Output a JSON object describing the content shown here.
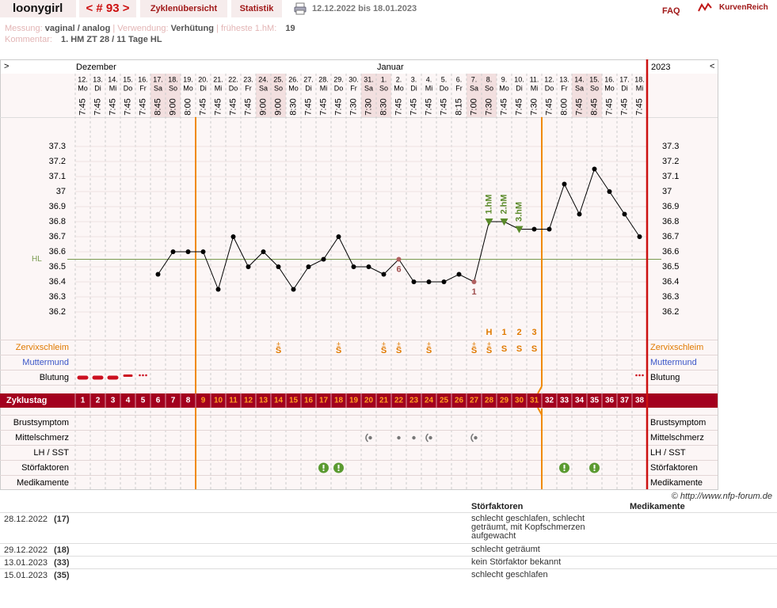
{
  "header": {
    "user": "loonygirl",
    "cycle": "< # 93 >",
    "tabs": [
      "Zyklenübersicht",
      "Statistik"
    ],
    "date_range": "12.12.2022 bis 18.01.2023",
    "faq": "FAQ",
    "logo": "KurvenReich"
  },
  "info": {
    "measurement_label": "Messung:",
    "measurement": "vaginal / analog",
    "separator": "|",
    "usage_label": "Verwendung:",
    "usage": "Verhütung",
    "earliest_label": "früheste 1.hM:",
    "earliest": "19",
    "comment_label": "Kommentar:",
    "comment": "1. HM ZT 28 / 11 Tage HL"
  },
  "chart_data": {
    "type": "line",
    "nav_prev": ">",
    "nav_next": "<",
    "year": "2023",
    "month_labels": [
      "Dezember",
      null,
      null,
      null,
      null,
      null,
      null,
      null,
      null,
      null,
      null,
      null,
      null,
      null,
      null,
      null,
      null,
      null,
      null,
      null,
      "Januar",
      null,
      null,
      null,
      null,
      null,
      null,
      null,
      null,
      null,
      null,
      null,
      null,
      null,
      null,
      null,
      null,
      null
    ],
    "categories": [
      "12.",
      "13.",
      "14.",
      "15.",
      "16.",
      "17.",
      "18.",
      "19.",
      "20.",
      "21.",
      "22.",
      "23.",
      "24.",
      "25.",
      "26.",
      "27.",
      "28.",
      "29.",
      "30.",
      "31.",
      "1.",
      "2.",
      "3.",
      "4.",
      "5.",
      "6.",
      "7.",
      "8.",
      "9.",
      "10.",
      "11.",
      "12.",
      "13.",
      "14.",
      "15.",
      "16.",
      "17.",
      "18."
    ],
    "weekdays": [
      "Mo",
      "Di",
      "Mi",
      "Do",
      "Fr",
      "Sa",
      "So",
      "Mo",
      "Di",
      "Mi",
      "Do",
      "Fr",
      "Sa",
      "So",
      "Mo",
      "Di",
      "Mi",
      "Do",
      "Fr",
      "Sa",
      "So",
      "Mo",
      "Di",
      "Mi",
      "Do",
      "Fr",
      "Sa",
      "So",
      "Mo",
      "Di",
      "Mi",
      "Do",
      "Fr",
      "Sa",
      "So",
      "Mo",
      "Di",
      "Mi"
    ],
    "times": [
      "7:45",
      "7:45",
      "7:45",
      "7:45",
      "7:45",
      "8:45",
      "9:00",
      "8:00",
      "7:45",
      "7:45",
      "7:45",
      "7:45",
      "9:00",
      "9:00",
      "8:30",
      "7:45",
      "7:45",
      "7:45",
      "7:30",
      "7:30",
      "8:30",
      "7:45",
      "7:45",
      "7:45",
      "7:45",
      "8:15",
      "7:00",
      "7:30",
      "7:45",
      "7:45",
      "7:30",
      "7:45",
      "8:00",
      "7:45",
      "8:45",
      "7:45",
      "7:45",
      "7:45"
    ],
    "values": [
      null,
      null,
      null,
      null,
      null,
      36.45,
      36.6,
      36.6,
      36.6,
      36.35,
      36.7,
      36.5,
      36.6,
      36.5,
      36.35,
      36.5,
      36.55,
      36.7,
      36.5,
      36.5,
      36.45,
      36.55,
      36.4,
      36.4,
      36.4,
      36.45,
      36.4,
      36.8,
      36.8,
      36.75,
      36.75,
      36.75,
      37.05,
      36.85,
      37.15,
      37.0,
      36.85,
      36.7
    ],
    "color": "#000000",
    "ylim": [
      36.1,
      37.4
    ],
    "yticks": [
      36.2,
      36.3,
      36.4,
      36.5,
      36.6,
      36.7,
      36.8,
      36.9,
      37,
      37.1,
      37.2,
      37.3
    ],
    "grid": true,
    "baseline": {
      "label": "HL",
      "value": 36.55,
      "color": "#7a9a50"
    },
    "point_notes": [
      null,
      null,
      null,
      null,
      null,
      null,
      null,
      null,
      null,
      null,
      null,
      null,
      null,
      null,
      null,
      null,
      null,
      null,
      null,
      null,
      null,
      "6",
      null,
      null,
      null,
      null,
      "1",
      null,
      null,
      null,
      null,
      null,
      null,
      null,
      null,
      null,
      null,
      null
    ],
    "hm_labels": [
      null,
      null,
      null,
      null,
      null,
      null,
      null,
      null,
      null,
      null,
      null,
      null,
      null,
      null,
      null,
      null,
      null,
      null,
      null,
      null,
      null,
      null,
      null,
      null,
      null,
      null,
      null,
      "1.hM",
      "2.hM",
      "3.hM",
      null,
      null,
      null,
      null,
      null,
      null,
      null,
      null
    ],
    "hm_color": "#5a8a2a",
    "cycle_day_label": "Zyklustag",
    "cycle_days": [
      1,
      2,
      3,
      4,
      5,
      6,
      7,
      8,
      9,
      10,
      11,
      12,
      13,
      14,
      15,
      16,
      17,
      18,
      19,
      20,
      21,
      22,
      23,
      24,
      25,
      26,
      27,
      28,
      29,
      30,
      31,
      32,
      33,
      34,
      35,
      36,
      37,
      38
    ],
    "fertile_window": [
      9,
      31
    ],
    "rows": [
      {
        "label": "Zervixschleim",
        "color": "#e07a00",
        "codes": [
          null,
          null,
          null,
          null,
          null,
          null,
          null,
          null,
          null,
          null,
          null,
          null,
          null,
          null,
          null,
          null,
          null,
          null,
          null,
          null,
          null,
          null,
          null,
          null,
          null,
          null,
          null,
          "H",
          "1",
          "2",
          "3",
          null,
          null,
          null,
          null,
          null,
          null,
          null
        ],
        "tops": [
          null,
          null,
          null,
          null,
          null,
          null,
          null,
          null,
          null,
          null,
          null,
          null,
          null,
          "±",
          null,
          null,
          null,
          "±",
          null,
          null,
          "±",
          "±",
          null,
          "±",
          null,
          null,
          "±",
          "±",
          null,
          null,
          null,
          null,
          null,
          null,
          null,
          null,
          null,
          null
        ],
        "marks": [
          null,
          null,
          null,
          null,
          null,
          null,
          null,
          null,
          null,
          null,
          null,
          null,
          null,
          "S",
          null,
          null,
          null,
          "S",
          null,
          null,
          "S",
          "S",
          null,
          "S",
          null,
          null,
          "S",
          "S",
          "S",
          "S",
          "S",
          null,
          null,
          null,
          null,
          null,
          null,
          null
        ]
      },
      {
        "label": "Muttermund",
        "color": "#3a56c8"
      },
      {
        "label": "Blutung",
        "color": "#000000",
        "bleeding": [
          "strong",
          "strong",
          "strong",
          "medium",
          "spotting",
          null,
          null,
          null,
          null,
          null,
          null,
          null,
          null,
          null,
          null,
          null,
          null,
          null,
          null,
          null,
          null,
          null,
          null,
          null,
          null,
          null,
          null,
          null,
          null,
          null,
          null,
          null,
          null,
          null,
          null,
          null,
          null,
          "spotting"
        ]
      },
      {
        "label": "Brustsymptom",
        "color": "#000000"
      },
      {
        "label": "Mittelschmerz",
        "color": "#000000",
        "pain": [
          null,
          null,
          null,
          null,
          null,
          null,
          null,
          null,
          null,
          null,
          null,
          null,
          null,
          null,
          null,
          null,
          null,
          null,
          null,
          "side",
          null,
          "dot",
          "dot",
          "side",
          null,
          null,
          "side",
          null,
          null,
          null,
          null,
          null,
          null,
          null,
          null,
          null,
          null,
          null
        ]
      },
      {
        "label": "LH / SST",
        "color": "#000000"
      },
      {
        "label": "Störfaktoren",
        "color": "#000000",
        "disturbance": [
          null,
          null,
          null,
          null,
          null,
          null,
          null,
          null,
          null,
          null,
          null,
          null,
          null,
          null,
          null,
          null,
          true,
          true,
          null,
          null,
          null,
          null,
          null,
          null,
          null,
          null,
          null,
          null,
          null,
          null,
          null,
          null,
          true,
          null,
          true,
          null,
          null,
          null
        ]
      },
      {
        "label": "Medikamente",
        "color": "#000000"
      }
    ]
  },
  "footer": {
    "copyright": "© http://www.nfp-forum.de"
  },
  "table": {
    "headers": [
      "Störfaktoren",
      "Medikamente"
    ],
    "rows": [
      [
        "28.12.2022",
        "(17)",
        "schlecht geschlafen, schlecht geträumt, mit Kopfschmerzen aufgewacht"
      ],
      [
        "29.12.2022",
        "(18)",
        "schlecht geträumt"
      ],
      [
        "13.01.2023",
        "(33)",
        "kein Störfaktor bekannt"
      ],
      [
        "15.01.2023",
        "(35)",
        "schlecht geschlafen"
      ]
    ]
  }
}
